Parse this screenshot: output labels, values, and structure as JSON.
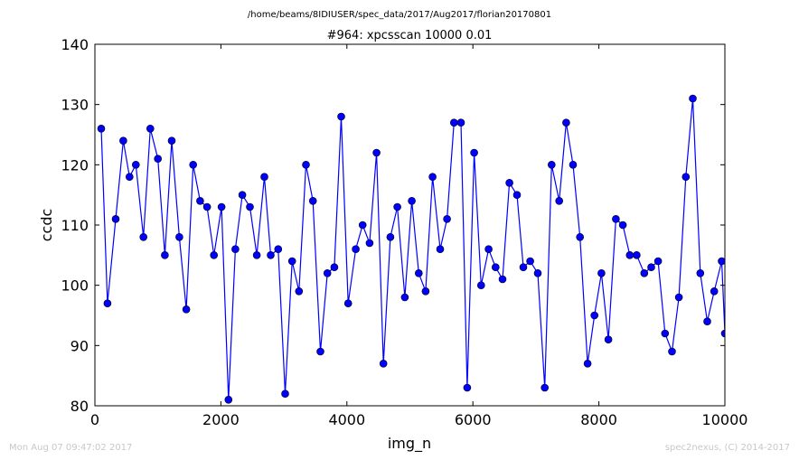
{
  "header": {
    "file_path": "/home/beams/8IDIUSER/spec_data/2017/Aug2017/florian20170801",
    "footer_left": "Mon Aug 07 09:47:02 2017",
    "footer_right": "spec2nexus, (C) 2014-2017"
  },
  "chart_data": {
    "type": "line",
    "title": "#964: xpcsscan 10000 0.01",
    "xlabel": "img_n",
    "ylabel": "ccdc",
    "xlim": [
      0,
      10000
    ],
    "ylim": [
      80,
      140
    ],
    "xticks": [
      0,
      2000,
      4000,
      6000,
      8000,
      10000
    ],
    "yticks": [
      80,
      90,
      100,
      110,
      120,
      130,
      140
    ],
    "grid": false,
    "marker": "circle",
    "line_color": "#0000ff",
    "x": [
      100,
      200,
      330,
      450,
      550,
      650,
      770,
      880,
      1000,
      1110,
      1220,
      1340,
      1450,
      1560,
      1670,
      1780,
      1890,
      2010,
      2120,
      2230,
      2340,
      2460,
      2570,
      2690,
      2790,
      2910,
      3020,
      3130,
      3240,
      3350,
      3460,
      3580,
      3690,
      3800,
      3910,
      4020,
      4140,
      4250,
      4360,
      4470,
      4580,
      4690,
      4800,
      4920,
      5030,
      5140,
      5250,
      5360,
      5480,
      5590,
      5700,
      5810,
      5910,
      6020,
      6130,
      6250,
      6360,
      6470,
      6580,
      6700,
      6800,
      6910,
      7030,
      7140,
      7250,
      7370,
      7480,
      7590,
      7700,
      7820,
      7930,
      8040,
      8150,
      8270,
      8380,
      8490,
      8600,
      8720,
      8830,
      8940,
      9050,
      9160,
      9270,
      9380,
      9490,
      9610,
      9720,
      9830,
      9950,
      10000
    ],
    "y": [
      126,
      97,
      111,
      124,
      118,
      120,
      108,
      126,
      121,
      105,
      124,
      108,
      96,
      120,
      114,
      113,
      105,
      113,
      81,
      106,
      115,
      113,
      105,
      118,
      105,
      106,
      82,
      104,
      99,
      120,
      114,
      89,
      102,
      103,
      128,
      97,
      106,
      110,
      107,
      122,
      87,
      108,
      113,
      98,
      114,
      102,
      99,
      118,
      106,
      111,
      127,
      127,
      83,
      122,
      100,
      106,
      103,
      101,
      117,
      115,
      103,
      104,
      102,
      83,
      120,
      114,
      127,
      120,
      108,
      87,
      95,
      102,
      91,
      111,
      110,
      105,
      105,
      102,
      103,
      104,
      92,
      89,
      98,
      118,
      131,
      102,
      94,
      99,
      104,
      92
    ]
  }
}
